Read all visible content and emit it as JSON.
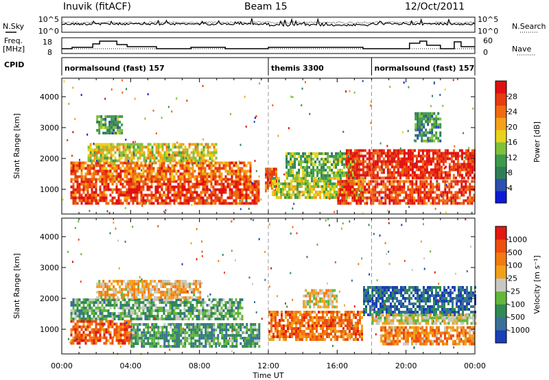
{
  "header": {
    "station": "Inuvik (fitACF)",
    "beam": "Beam 15",
    "date": "12/Oct/2011"
  },
  "labels": {
    "nsky": "N.Sky",
    "nsearch": "N.Search",
    "freq": "Freq.",
    "freq_unit": "[MHz]",
    "nave": "Nave",
    "cpid": "CPID",
    "slant_range": "Slant Range [km]",
    "time_axis": "Time UT",
    "power_label": "Power [dB]",
    "velocity_label": "Velocity [m s⁻¹]"
  },
  "noise_axis": {
    "left": [
      "10^5",
      "10^0"
    ],
    "right": [
      "10^5",
      "10^0"
    ]
  },
  "freq_axis": {
    "left": [
      "18",
      "8"
    ],
    "right": [
      "60",
      "0"
    ]
  },
  "cpid_segments": [
    {
      "label": "normalsound (fast) 157",
      "start": 0,
      "end": 12
    },
    {
      "label": "themis 3300",
      "start": 12,
      "end": 18
    },
    {
      "label": "normalsound (fast) 157",
      "start": 18,
      "end": 24
    }
  ],
  "time_ticks": [
    "00:00",
    "04:00",
    "08:00",
    "12:00",
    "16:00",
    "20:00",
    "00:00"
  ],
  "range_ticks": [
    "1000",
    "2000",
    "3000",
    "4000"
  ],
  "power_scale": {
    "ticks": [
      "4",
      "8",
      "12",
      "16",
      "20",
      "24",
      "28"
    ],
    "colors": [
      "#0b1bd6",
      "#2a4fb0",
      "#2f7e58",
      "#3f9a4a",
      "#7fc13a",
      "#e8d21c",
      "#f4a21a",
      "#f06a12",
      "#e83a10",
      "#e01010"
    ]
  },
  "velocity_scale": {
    "ticks": [
      "1000",
      "500",
      "100",
      "25",
      "-25",
      "-100",
      "-500",
      "-1000"
    ],
    "colors": [
      "#1a3fb8",
      "#3a6f9a",
      "#2f8a56",
      "#62b73a",
      "#c8c8c0",
      "#f2a01a",
      "#f27a12",
      "#ee4e10",
      "#e01a10"
    ]
  },
  "chart_data": {
    "type": "heatmap",
    "title": "Inuvik (fitACF)  Beam 15  12/Oct/2011",
    "xlabel": "Time UT",
    "ylabel": "Slant Range [km]",
    "xlim": [
      "00:00",
      "24:00"
    ],
    "ylim": [
      200,
      4600
    ],
    "panels": [
      {
        "name": "Power [dB]",
        "clim": [
          0,
          30
        ],
        "bands": [
          {
            "t": [
              0.5,
              11.5
            ],
            "range": [
              500,
              1300
            ],
            "level": 0.85
          },
          {
            "t": [
              0.5,
              11.0
            ],
            "range": [
              1300,
              1900
            ],
            "level": 0.75
          },
          {
            "t": [
              1.5,
              9.0
            ],
            "range": [
              1900,
              2500
            ],
            "level": 0.55
          },
          {
            "t": [
              2.0,
              3.5
            ],
            "range": [
              2800,
              3400
            ],
            "level": 0.35
          },
          {
            "t": [
              11.8,
              12.4
            ],
            "range": [
              900,
              1700
            ],
            "level": 0.8
          },
          {
            "t": [
              12.2,
              17.5
            ],
            "range": [
              700,
              1400
            ],
            "level": 0.5
          },
          {
            "t": [
              13.0,
              17.0
            ],
            "range": [
              1400,
              2200
            ],
            "level": 0.4
          },
          {
            "t": [
              16.0,
              24.0
            ],
            "range": [
              500,
              1300
            ],
            "level": 0.85
          },
          {
            "t": [
              16.5,
              24.0
            ],
            "range": [
              1400,
              2300
            ],
            "level": 0.9
          },
          {
            "t": [
              20.5,
              22.0
            ],
            "range": [
              2600,
              3500
            ],
            "level": 0.3
          }
        ]
      },
      {
        "name": "Velocity [m s-1]",
        "clim": [
          -1000,
          1000
        ],
        "bands": [
          {
            "t": [
              0.5,
              4.0
            ],
            "range": [
              500,
              1300
            ],
            "level": 0.8
          },
          {
            "t": [
              4.0,
              11.5
            ],
            "range": [
              400,
              1200
            ],
            "level": 0.3
          },
          {
            "t": [
              0.5,
              10.5
            ],
            "range": [
              1300,
              2000
            ],
            "level": 0.35
          },
          {
            "t": [
              2.0,
              8.0
            ],
            "range": [
              2000,
              2600
            ],
            "level": 0.6
          },
          {
            "t": [
              12.0,
              17.5
            ],
            "range": [
              700,
              1600
            ],
            "level": 0.75
          },
          {
            "t": [
              14.0,
              16.0
            ],
            "range": [
              1700,
              2300
            ],
            "level": 0.55
          },
          {
            "t": [
              17.5,
              24.0
            ],
            "range": [
              1500,
              2400
            ],
            "level": 0.15
          },
          {
            "t": [
              18.0,
              24.0
            ],
            "range": [
              1200,
              1500
            ],
            "level": 0.5
          },
          {
            "t": [
              18.5,
              24.0
            ],
            "range": [
              500,
              1100
            ],
            "level": 0.7
          }
        ]
      }
    ]
  }
}
